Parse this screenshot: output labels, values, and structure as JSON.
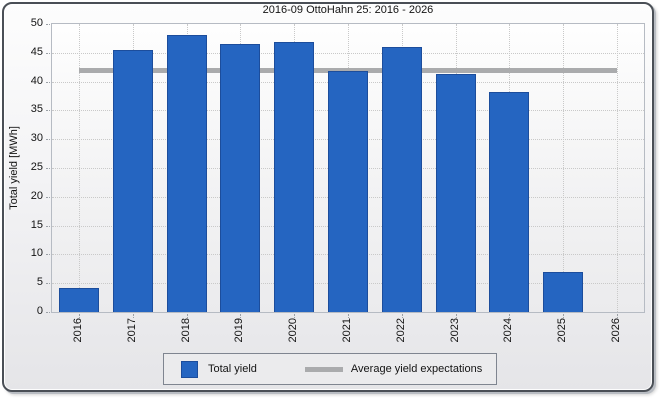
{
  "window": {
    "title": "2016-09 OttoHahn 25: 2016 - 2026"
  },
  "chart_data": {
    "type": "bar",
    "title": "2016-09 OttoHahn 25: 2016 - 2026",
    "ylabel": "Total yield [MWh]",
    "xlabel": "",
    "categories": [
      "2016",
      "2017",
      "2018",
      "2019",
      "2020",
      "2021",
      "2022",
      "2023",
      "2024",
      "2025",
      "2026"
    ],
    "series": [
      {
        "name": "Total yield",
        "type": "bar",
        "values": [
          4.2,
          45.4,
          48.1,
          46.6,
          46.9,
          41.8,
          46.0,
          41.3,
          38.2,
          7.0,
          null
        ]
      },
      {
        "name": "Average yield expectations",
        "type": "line",
        "value": 42.0
      }
    ],
    "ylim": [
      0,
      50
    ],
    "ytick_step": 5,
    "grid": true,
    "legend_position": "bottom",
    "colors": {
      "bar_fill": "#2565c1",
      "bar_border": "#1c4d9c",
      "average_line": "#aaabad",
      "plot_border": "#b6bbc3"
    }
  },
  "legend": {
    "items": [
      {
        "label": "Total yield"
      },
      {
        "label": "Average yield expectations"
      }
    ]
  }
}
